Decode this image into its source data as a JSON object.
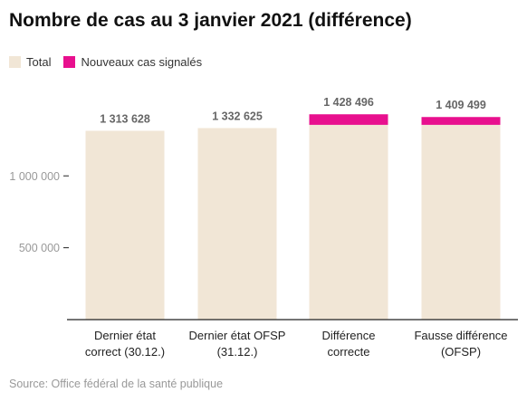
{
  "title": "Nombre de cas au 3 janvier 2021 (différence)",
  "source": "Source: Office fédéral de la santé publique",
  "legend": [
    {
      "label": "Total",
      "color": "#f1e6d6"
    },
    {
      "label": "Nouveaux cas signalés",
      "color": "#e8108e"
    }
  ],
  "colors": {
    "total": "#f1e6d6",
    "new": "#e8108e",
    "axis": "#222222",
    "tick_text": "#999999",
    "value_text": "#666666"
  },
  "chart_data": {
    "type": "bar",
    "stacked": true,
    "title": "Nombre de cas au 3 janvier 2021 (différence)",
    "categories": [
      {
        "line1": "Dernier état",
        "line2": "correct (30.12.)"
      },
      {
        "line1": "Dernier état OFSP",
        "line2": "(31.12.)"
      },
      {
        "line1": "Différence",
        "line2": "correcte"
      },
      {
        "line1": "Fausse différence",
        "line2": "(OFSP)"
      }
    ],
    "series": [
      {
        "name": "Total",
        "values": [
          1313628,
          1332625,
          1355000,
          1355000
        ]
      },
      {
        "name": "Nouveaux cas signalés",
        "values": [
          0,
          0,
          73496,
          54499
        ]
      }
    ],
    "totals": [
      1313628,
      1332625,
      1428496,
      1409499
    ],
    "value_labels": [
      "1 313 628",
      "1 332 625",
      "1 428 496",
      "1 409 499"
    ],
    "yticks": [
      500000,
      1000000
    ],
    "ytick_labels": [
      "500 000",
      "1 000 000"
    ],
    "ylim": [
      0,
      1600000
    ],
    "grid": false,
    "legend_position": "top-left"
  }
}
